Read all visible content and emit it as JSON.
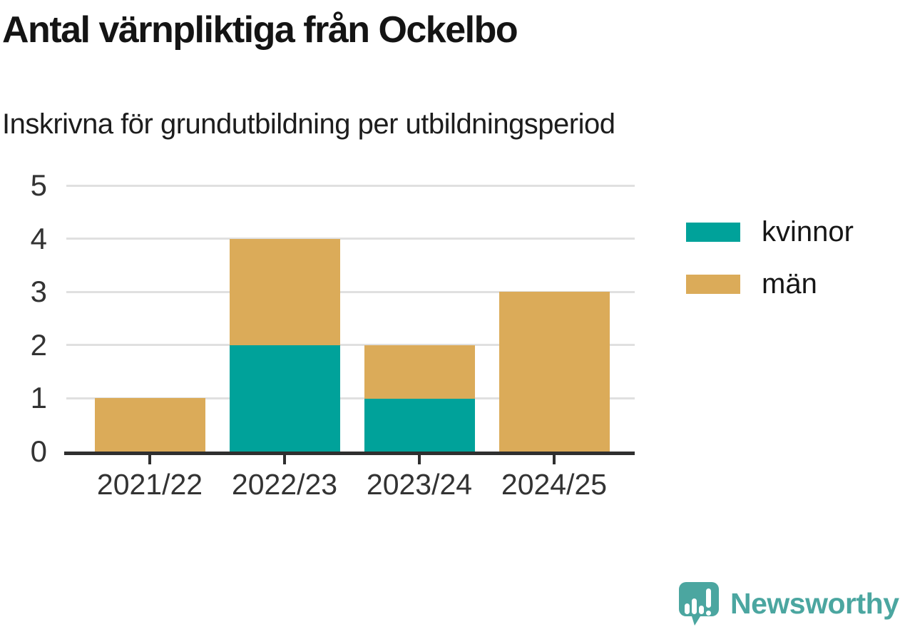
{
  "header": {
    "title": "Antal värnpliktiga från Ockelbo",
    "subtitle": "Inskrivna för grundutbildning per utbildningsperiod"
  },
  "chart_data": {
    "type": "bar",
    "stacked": true,
    "title": "Antal värnpliktiga från Ockelbo",
    "subtitle": "Inskrivna för grundutbildning per utbildningsperiod",
    "categories": [
      "2021/22",
      "2022/23",
      "2023/24",
      "2024/25"
    ],
    "series": [
      {
        "name": "kvinnor",
        "color": "#00a29a",
        "values": [
          0,
          2,
          1,
          0
        ]
      },
      {
        "name": "män",
        "color": "#dbab59",
        "values": [
          1,
          2,
          1,
          3
        ]
      }
    ],
    "totals": [
      1,
      4,
      2,
      3
    ],
    "xlabel": "",
    "ylabel": "",
    "ylim": [
      0,
      5
    ],
    "yticks": [
      0,
      1,
      2,
      3,
      4,
      5
    ],
    "grid": true,
    "legend_position": "right"
  },
  "footer": {
    "brand": "Newsworthy"
  },
  "colors": {
    "kvinnor": "#00a29a",
    "man": "#dbab59",
    "axis": "#2f2f2f",
    "gridline": "#e0e0e0",
    "brand_teal": "#4ba6a0"
  }
}
